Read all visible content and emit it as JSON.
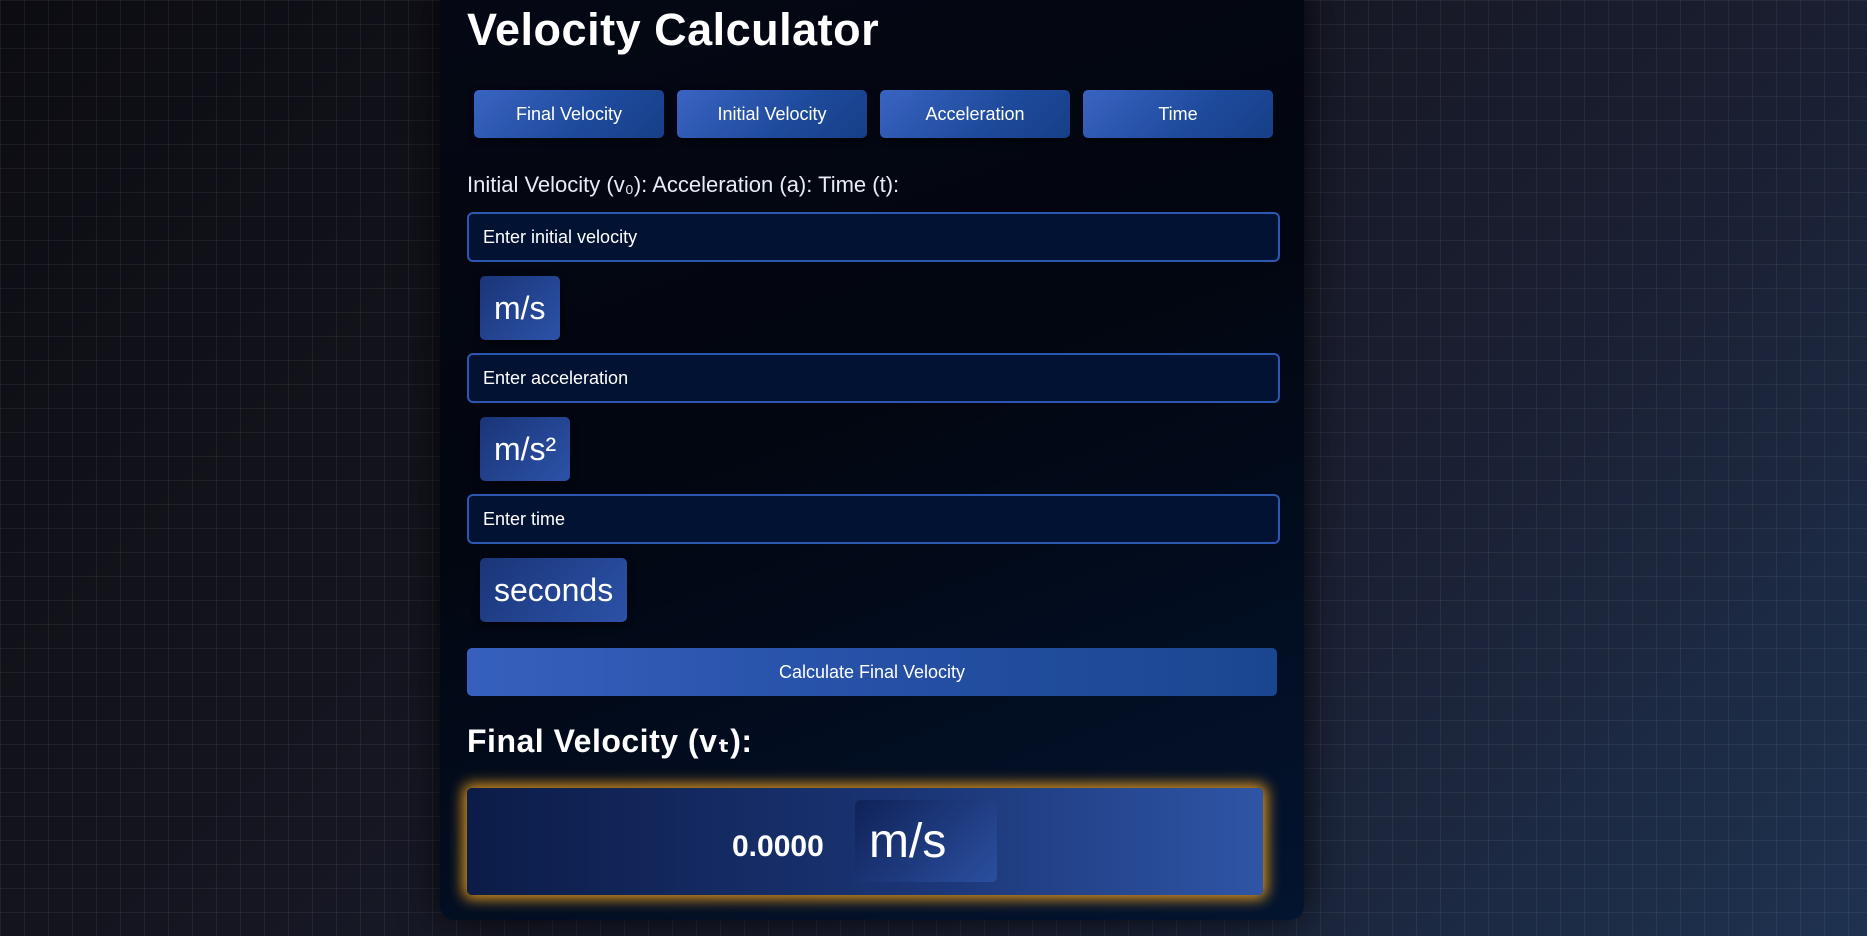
{
  "title": "Velocity Calculator",
  "tabs": [
    "Final Velocity",
    "Initial Velocity",
    "Acceleration",
    "Time"
  ],
  "labels_line": "Initial Velocity (v₀): Acceleration (a): Time (t):",
  "inputs": {
    "initial_velocity": {
      "placeholder": "Enter initial velocity",
      "unit": "m/s"
    },
    "acceleration": {
      "placeholder": "Enter acceleration",
      "unit": "m/s²"
    },
    "time": {
      "placeholder": "Enter time",
      "unit": "seconds"
    }
  },
  "calculate_label": "Calculate Final Velocity",
  "result": {
    "heading": "Final Velocity (vₜ):",
    "value": "0.0000",
    "unit": "m/s"
  },
  "colors": {
    "accent": "#2c57b0",
    "glow": "#ffaa1e",
    "panel": "#020610"
  }
}
